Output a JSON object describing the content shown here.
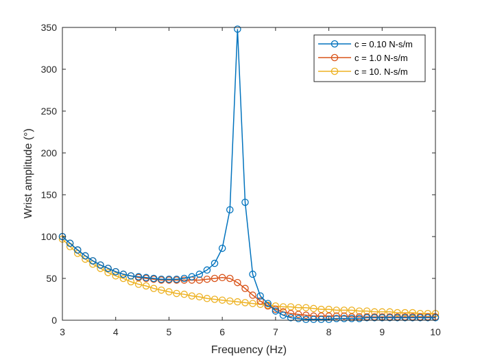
{
  "chart_data": {
    "type": "line",
    "xlabel": "Frequency (Hz)",
    "ylabel": "Wrist amplitude (°)",
    "xlim": [
      3,
      10
    ],
    "ylim": [
      0,
      350
    ],
    "xticks": [
      "3",
      "4",
      "5",
      "6",
      "7",
      "8",
      "9",
      "10"
    ],
    "yticks": [
      "0",
      "50",
      "100",
      "150",
      "200",
      "250",
      "300",
      "350"
    ],
    "grid": false,
    "legend_position": "top-right",
    "marker": "circle",
    "x": [
      3.0,
      3.143,
      3.286,
      3.429,
      3.571,
      3.714,
      3.857,
      4.0,
      4.143,
      4.286,
      4.429,
      4.571,
      4.714,
      4.857,
      5.0,
      5.143,
      5.286,
      5.429,
      5.571,
      5.714,
      5.857,
      6.0,
      6.143,
      6.286,
      6.429,
      6.571,
      6.714,
      6.857,
      7.0,
      7.143,
      7.286,
      7.429,
      7.571,
      7.714,
      7.857,
      8.0,
      8.143,
      8.286,
      8.429,
      8.571,
      8.714,
      8.857,
      9.0,
      9.143,
      9.286,
      9.429,
      9.571,
      9.714,
      9.857,
      10.0
    ],
    "series": [
      {
        "name": "c = 0.10 N-s/m",
        "color": "#0072BD",
        "values": [
          100,
          92,
          84,
          77,
          71,
          66,
          62,
          58,
          55,
          53,
          52,
          51,
          50,
          49,
          49,
          49,
          50,
          52,
          55,
          60,
          68,
          86,
          132,
          348,
          141,
          55,
          29,
          20,
          11,
          6,
          3,
          2,
          1,
          1,
          1,
          1,
          2,
          2,
          2,
          2,
          3,
          3,
          3,
          3,
          3,
          3,
          3,
          3,
          3,
          3
        ]
      },
      {
        "name": "c = 1.0 N-s/m",
        "color": "#D95319",
        "values": [
          100,
          92,
          84,
          77,
          71,
          66,
          62,
          58,
          55,
          53,
          51,
          50,
          49,
          48,
          48,
          48,
          48,
          48,
          48,
          49,
          50,
          51,
          50,
          45,
          38,
          30,
          23,
          17,
          13,
          10,
          8,
          7,
          6,
          5,
          5,
          5,
          5,
          5,
          4,
          4,
          4,
          4,
          4,
          4,
          4,
          4,
          4,
          4,
          4,
          4
        ]
      },
      {
        "name": "c = 10. N-s/m",
        "color": "#EDB120",
        "values": [
          97,
          88,
          80,
          73,
          67,
          62,
          57,
          53,
          50,
          46,
          43,
          41,
          38,
          36,
          34,
          32,
          31,
          29,
          28,
          26,
          25,
          24,
          23,
          22,
          21,
          20,
          19,
          18,
          17,
          16,
          16,
          15,
          15,
          14,
          13,
          13,
          12,
          12,
          12,
          11,
          11,
          10,
          10,
          10,
          9,
          9,
          9,
          8,
          8,
          8
        ]
      }
    ]
  }
}
